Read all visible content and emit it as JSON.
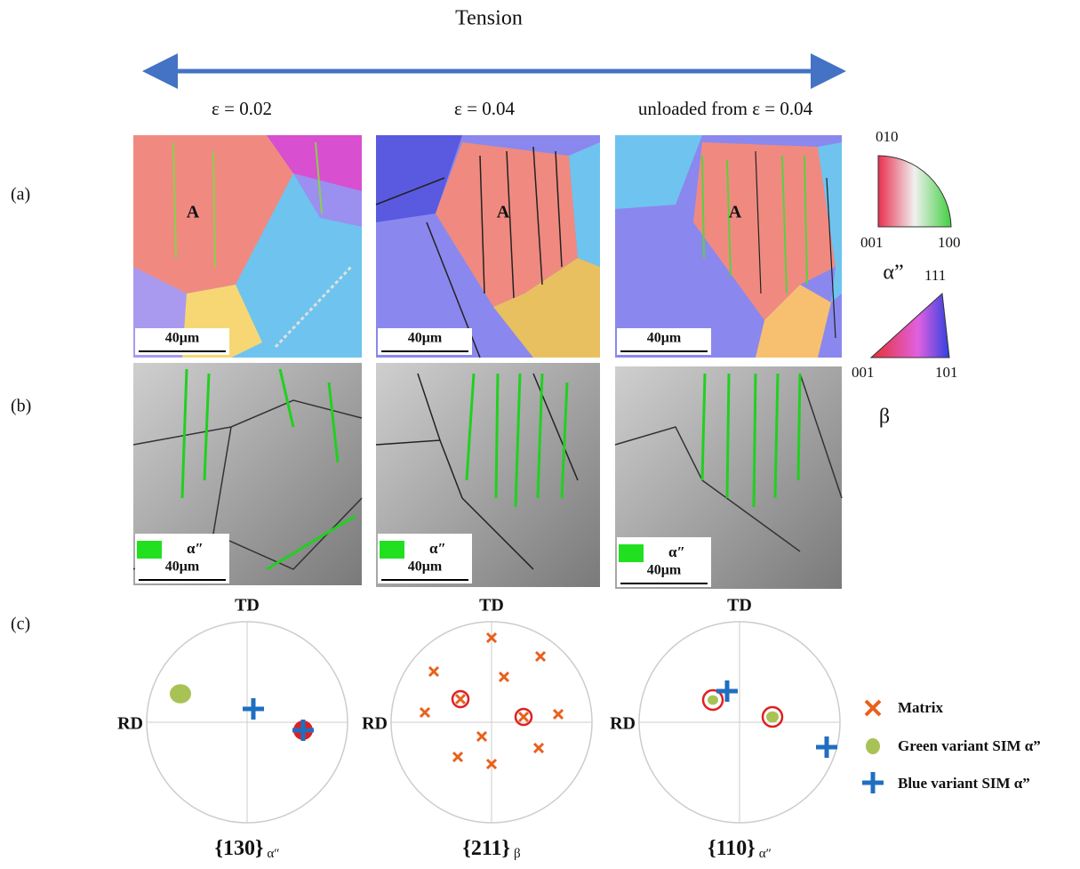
{
  "header": {
    "arrow_label": "Tension"
  },
  "columns": [
    "ε = 0.02",
    "ε = 0.04",
    "unloaded from ε = 0.04"
  ],
  "row_labels": [
    "(a)",
    "(b)",
    "(c)"
  ],
  "panels": [
    {
      "grain_label": "A",
      "ebsd_scale": "40μm",
      "phase_legend": "α″",
      "phase_scale": "40μm"
    },
    {
      "grain_label": "A",
      "ebsd_scale": "40μm",
      "phase_legend": "α″",
      "phase_scale": "40μm"
    },
    {
      "grain_label": "A",
      "ebsd_scale": "40μm",
      "phase_legend": "α″",
      "phase_scale": "40μm"
    }
  ],
  "ipf_alpha": {
    "corners": [
      "010",
      "001",
      "100"
    ],
    "label": "α”"
  },
  "ipf_beta": {
    "corners": [
      "111",
      "001",
      "101"
    ],
    "label": "β"
  },
  "pole_figures": [
    {
      "top": "TD",
      "left": "RD",
      "plane": "{130}",
      "subscript": "α″"
    },
    {
      "top": "TD",
      "left": "RD",
      "plane": "{211}",
      "subscript": "β"
    },
    {
      "top": "TD",
      "left": "RD",
      "plane": "{110}",
      "subscript": "α″"
    }
  ],
  "legend": [
    "Matrix",
    "Green variant SIM α”",
    "Blue variant SIM α”"
  ]
}
